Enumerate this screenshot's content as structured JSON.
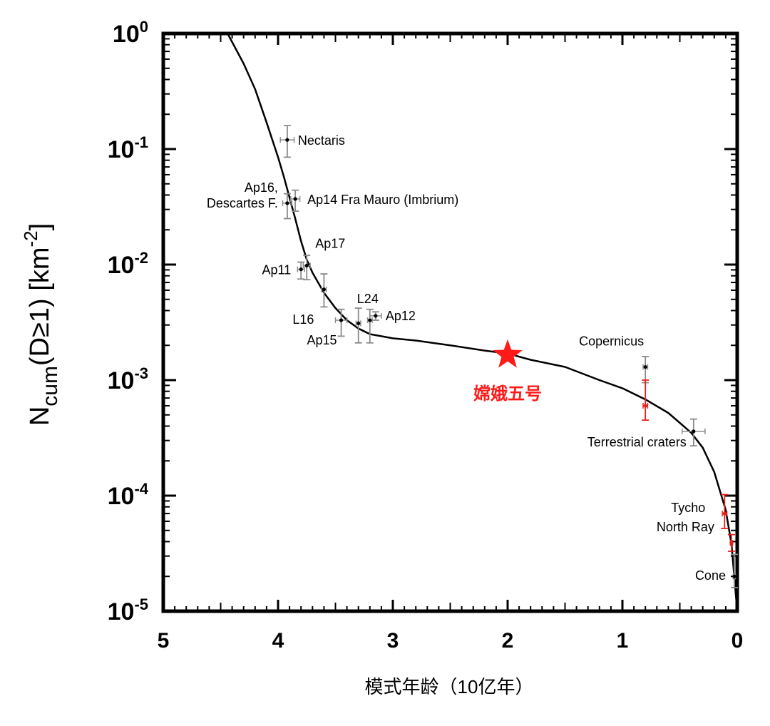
{
  "chart_data": {
    "type": "scatter",
    "x_axis": {
      "label": "模式年龄（10亿年）",
      "range": [
        5,
        0
      ],
      "reversed": true,
      "ticks": [
        "5",
        "4",
        "3",
        "2",
        "1",
        "0"
      ]
    },
    "y_axis": {
      "label_main": "N",
      "label_sub": "cum",
      "label_rest": "(D≥1) [km",
      "label_sup": "-2",
      "label_end": "]",
      "scale": "log",
      "range": [
        1e-05,
        1
      ],
      "ticks": [
        {
          "base": "10",
          "exp": "0"
        },
        {
          "base": "10",
          "exp": "-1"
        },
        {
          "base": "10",
          "exp": "-2"
        },
        {
          "base": "10",
          "exp": "-3"
        },
        {
          "base": "10",
          "exp": "-4"
        },
        {
          "base": "10",
          "exp": "-5"
        }
      ]
    },
    "grid": false,
    "series": [
      {
        "type": "line",
        "color": "#000000",
        "x": [
          4.44,
          4.3,
          4.2,
          4.1,
          4.0,
          3.95,
          3.9,
          3.85,
          3.8,
          3.75,
          3.7,
          3.6,
          3.5,
          3.4,
          3.3,
          3.2,
          3.0,
          2.8,
          2.5,
          2.2,
          2.0,
          1.8,
          1.5,
          1.2,
          1.0,
          0.8,
          0.6,
          0.4,
          0.3,
          0.2,
          0.1,
          0.05,
          0.0
        ],
        "y": [
          1.0,
          0.55,
          0.33,
          0.17,
          0.085,
          0.058,
          0.038,
          0.025,
          0.016,
          0.011,
          0.0085,
          0.0057,
          0.0042,
          0.0033,
          0.0028,
          0.0025,
          0.0023,
          0.0022,
          0.002,
          0.0018,
          0.0017,
          0.0015,
          0.0013,
          0.001,
          0.00085,
          0.00068,
          0.00052,
          0.00035,
          0.00026,
          0.00016,
          7.5e-05,
          3.8e-05,
          1e-05
        ]
      },
      {
        "type": "points",
        "color": "#000000",
        "points": [
          {
            "label": "Nectaris",
            "x": 3.92,
            "y": 0.12,
            "y_err": [
              0.085,
              0.16
            ],
            "x_err": [
              3.86,
              3.98
            ]
          },
          {
            "label": "Ap14 Fra Mauro (Imbrium)",
            "x": 3.85,
            "y": 0.037,
            "y_err": [
              0.029,
              0.044
            ],
            "x_err": [
              3.81,
              3.89
            ]
          },
          {
            "label": "Ap16,\nDescartes F.",
            "x": 3.92,
            "y": 0.034,
            "y_err": [
              0.025,
              0.041
            ],
            "x_err": [
              3.88,
              3.96
            ]
          },
          {
            "label": "Ap17",
            "x": 3.75,
            "y": 0.0098,
            "y_err": [
              0.0074,
              0.012
            ],
            "x_err": [
              3.72,
              3.78
            ]
          },
          {
            "label": "Ap11",
            "x": 3.8,
            "y": 0.0091,
            "y_err": [
              0.0075,
              0.0105
            ],
            "x_err": [
              3.77,
              3.83
            ]
          },
          {
            "label": "L16",
            "x": 3.6,
            "y": 0.0061,
            "y_err": [
              0.0043,
              0.0083
            ],
            "x_err": [
              3.58,
              3.62
            ]
          },
          {
            "label": "L24",
            "x": 3.2,
            "y": 0.0033,
            "y_err": [
              0.0021,
              0.0041
            ],
            "x_err": [
              3.18,
              3.22
            ]
          },
          {
            "label": "Ap12",
            "x": 3.15,
            "y": 0.0036,
            "y_err": [
              0.0033,
              0.0039
            ],
            "x_err": [
              3.1,
              3.2
            ]
          },
          {
            "label": "Ap15",
            "x": 3.45,
            "y": 0.0033,
            "y_err": [
              0.0024,
              0.0041
            ],
            "x_err": [
              3.4,
              3.5
            ]
          },
          {
            "label": "",
            "x": 3.3,
            "y": 0.0031,
            "y_err": [
              0.0021,
              0.0042
            ],
            "x_err": [
              3.28,
              3.32
            ]
          },
          {
            "label": "Copernicus",
            "x": 0.8,
            "y": 0.0013,
            "y_err": [
              0.00095,
              0.0016
            ],
            "x_err": [
              0.78,
              0.82
            ]
          },
          {
            "label": "Terrestrial craters",
            "x": 0.38,
            "y": 0.00036,
            "y_err": [
              0.00027,
              0.00046
            ],
            "x_err": [
              0.28,
              0.48
            ]
          },
          {
            "label": "Cone",
            "x": 0.025,
            "y": 2e-05,
            "y_err": [
              1.6e-05,
              3.1e-05
            ],
            "x_err": [
              0.015,
              0.035
            ]
          }
        ]
      },
      {
        "type": "points",
        "color": "#e8201d",
        "points": [
          {
            "label": "",
            "x": 0.8,
            "y": 0.0006,
            "y_err": [
              0.00045,
              0.001
            ],
            "x_err": [
              0.78,
              0.82
            ]
          },
          {
            "label": "Tycho",
            "x": 0.11,
            "y": 7e-05,
            "y_err": [
              5.2e-05,
              0.000102
            ],
            "x_err": [
              0.09,
              0.13
            ]
          },
          {
            "label": "North Ray",
            "x": 0.05,
            "y": 3.9e-05,
            "y_err": [
              3.3e-05,
              4.6e-05
            ],
            "x_err": [
              0.04,
              0.06
            ]
          }
        ]
      },
      {
        "type": "marker",
        "marker": "star",
        "color": "#ff1a1a",
        "label": "嫦娥五号",
        "x": 2.0,
        "y": 0.00165
      }
    ]
  }
}
